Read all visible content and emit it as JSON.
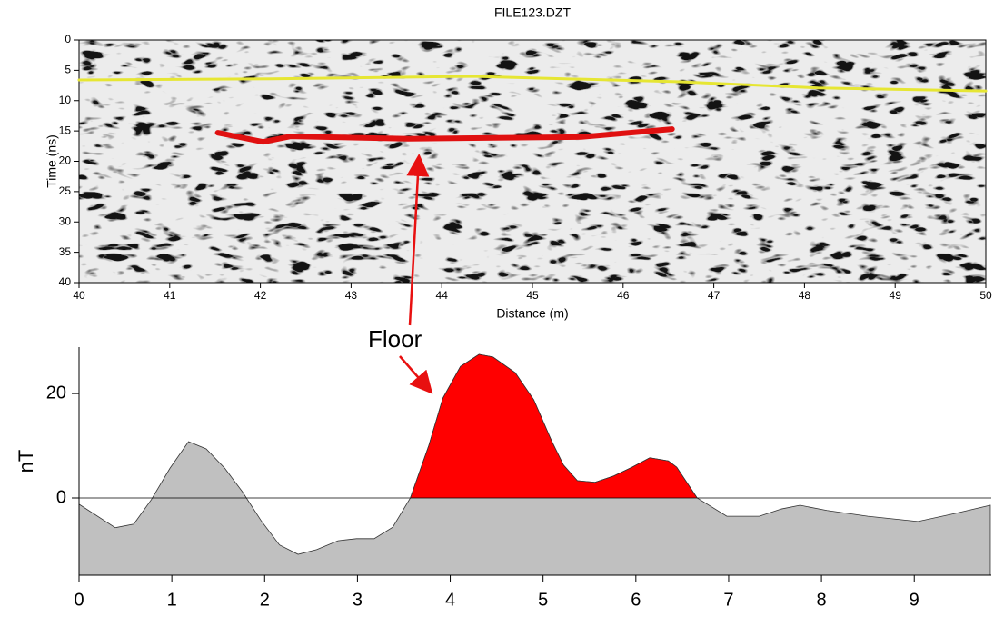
{
  "annotation": "Floor",
  "chart_data": [
    {
      "type": "line",
      "title": "FILE123.DZT",
      "x_label": "Distance (m)",
      "y_label": "Time (ns)",
      "xlim": [
        40,
        50
      ],
      "xticks": [
        40,
        41,
        42,
        43,
        44,
        45,
        46,
        47,
        48,
        49,
        50
      ],
      "ylim": [
        0,
        40
      ],
      "yticks": [
        0,
        5,
        10,
        15,
        20,
        25,
        30,
        35,
        40
      ],
      "y_inverted": true,
      "series": [
        {
          "color": "#e6e633",
          "x": [
            40,
            42.13,
            44.34,
            46.64,
            48.15,
            50
          ],
          "values": [
            6.6,
            6.4,
            6.0,
            6.9,
            7.9,
            8.4
          ]
        },
        {
          "color": "#e01010",
          "x": [
            41.53,
            42.03,
            42.33,
            43.63,
            45.54,
            46.54
          ],
          "values": [
            15.3,
            16.8,
            15.9,
            16.3,
            16.0,
            14.7
          ]
        }
      ]
    },
    {
      "type": "area",
      "y_label": "nT",
      "color": "#c0c0c0",
      "highlight": {
        "xlim": [
          3.57,
          6.66
        ],
        "color": "#ff0000"
      },
      "xlim": [
        0,
        9.83
      ],
      "xticks": [
        0,
        1,
        2,
        3,
        4,
        5,
        6,
        7,
        8,
        9
      ],
      "ylim": [
        -14.8,
        28.9
      ],
      "yticks": [
        0,
        20
      ],
      "x": [
        0,
        0.39,
        0.59,
        0.78,
        0.98,
        1.18,
        1.37,
        1.57,
        1.76,
        1.96,
        2.16,
        2.36,
        2.56,
        2.79,
        2.99,
        3.18,
        3.38,
        3.57,
        3.77,
        3.92,
        4.11,
        4.31,
        4.46,
        4.7,
        4.9,
        5.09,
        5.22,
        5.37,
        5.56,
        5.76,
        5.96,
        6.15,
        6.35,
        6.44,
        6.66,
        6.98,
        7.33,
        7.57,
        7.77,
        8.06,
        8.5,
        9.04,
        9.43,
        9.82
      ],
      "values": [
        -1.2,
        -5.7,
        -5,
        -0.3,
        5.7,
        10.8,
        9.4,
        5.7,
        1.2,
        -4.3,
        -9,
        -10.8,
        -9.9,
        -8.2,
        -7.8,
        -7.8,
        -5.6,
        0,
        10.1,
        19.1,
        25.2,
        27.5,
        27,
        24,
        18.8,
        11,
        6.3,
        3.3,
        3,
        4.2,
        5.9,
        7.7,
        7.1,
        5.9,
        0,
        -3.5,
        -3.5,
        -2.1,
        -1.4,
        -2.4,
        -3.5,
        -4.5,
        -3,
        -1.4
      ]
    }
  ]
}
